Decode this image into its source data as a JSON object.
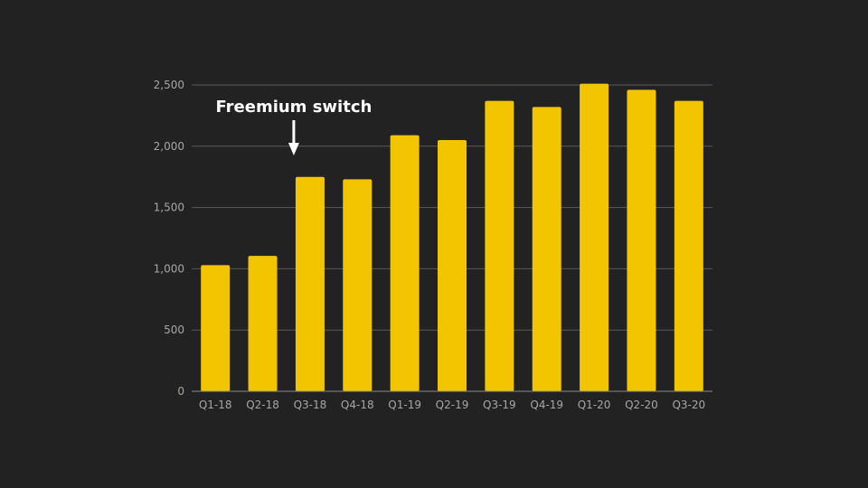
{
  "colors": {
    "background": "#222222",
    "bar": "#f2c500",
    "grid": "#585858",
    "axis": "#8a8a8a",
    "tick_text": "#a6a6a6",
    "annotation": "#ffffff"
  },
  "chart_data": {
    "type": "bar",
    "title": "",
    "xlabel": "",
    "ylabel": "",
    "categories": [
      "Q1-18",
      "Q2-18",
      "Q3-18",
      "Q4-18",
      "Q1-19",
      "Q2-19",
      "Q3-19",
      "Q4-19",
      "Q1-20",
      "Q2-20",
      "Q3-20"
    ],
    "values": [
      1030,
      1105,
      1750,
      1730,
      2090,
      2050,
      2370,
      2320,
      2510,
      2460,
      2370
    ],
    "ylim": [
      0,
      2500
    ],
    "yticks": [
      0,
      500,
      1000,
      1500,
      2000,
      2500
    ],
    "ytick_labels": [
      "0",
      "500",
      "1,000",
      "1,500",
      "2,000",
      "2,500"
    ],
    "grid": true,
    "annotations": [
      {
        "text": "Freemium switch",
        "category": "Q3-18",
        "arrow": "down"
      }
    ]
  }
}
